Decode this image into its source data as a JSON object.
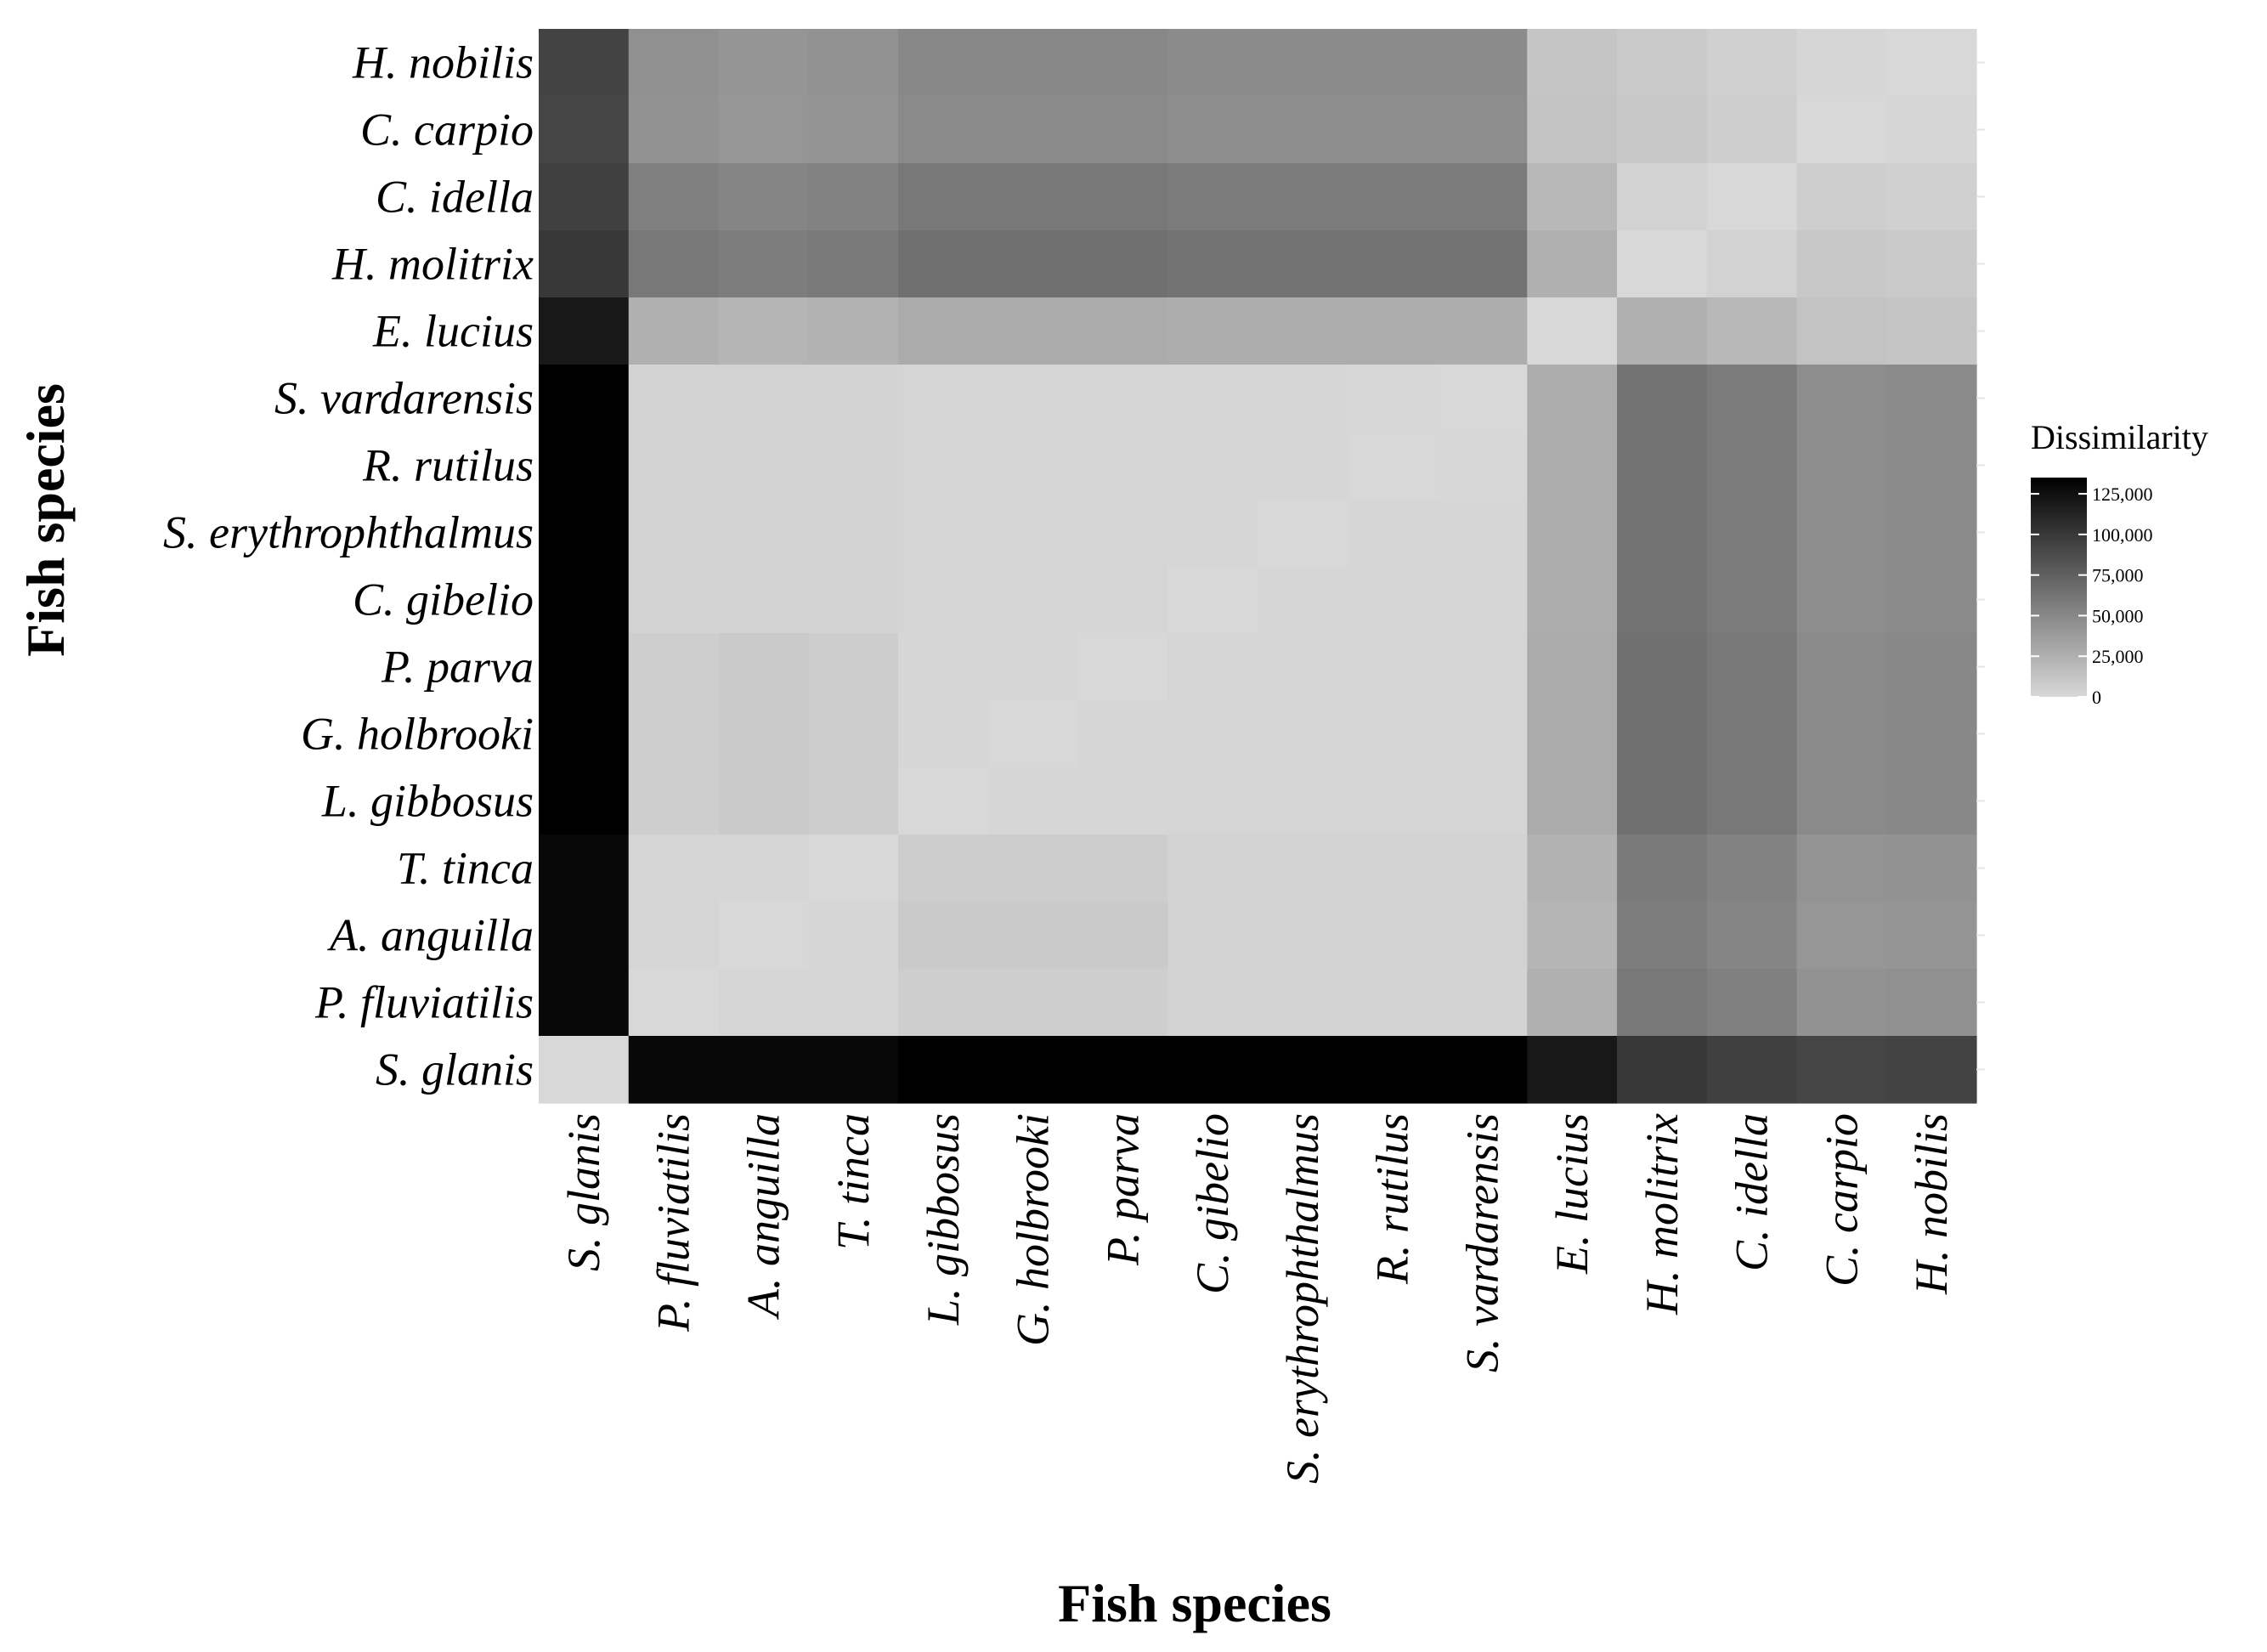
{
  "chart_data": {
    "type": "heatmap",
    "xlabel": "Fish species",
    "ylabel": "Fish species",
    "x_categories": [
      "S. glanis",
      "P. fluviatilis",
      "A. anguilla",
      "T. tinca",
      "L. gibbosus",
      "G. holbrooki",
      "P. parva",
      "C. gibelio",
      "S. erythrophthalmus",
      "R. rutilus",
      "S. vardarensis",
      "E. lucius",
      "H. molitrix",
      "C. idella",
      "C. carpio",
      "H. nobilis"
    ],
    "y_categories_top_to_bottom": [
      "H. nobilis",
      "C. carpio",
      "C. idella",
      "H. molitrix",
      "E. lucius",
      "S. vardarensis",
      "R. rutilus",
      "S. erythrophthalmus",
      "C. gibelio",
      "P. parva",
      "G. holbrooki",
      "L. gibbosus",
      "T. tinca",
      "A. anguilla",
      "P. fluviatilis",
      "S. glanis"
    ],
    "values": [
      [
        93000,
        45000,
        42000,
        44000,
        50000,
        50000,
        50000,
        48000,
        48000,
        48000,
        48000,
        12000,
        9000,
        5000,
        1000,
        0
      ],
      [
        92000,
        44000,
        41000,
        43000,
        49000,
        49000,
        49000,
        47000,
        47000,
        47000,
        47000,
        13000,
        10000,
        6000,
        0,
        1000
      ],
      [
        95000,
        55000,
        52000,
        54000,
        60000,
        60000,
        60000,
        58000,
        58000,
        58000,
        58000,
        20000,
        4000,
        0,
        6000,
        5000
      ],
      [
        100000,
        60000,
        57000,
        59000,
        65000,
        65000,
        65000,
        63000,
        63000,
        63000,
        63000,
        25000,
        0,
        4000,
        10000,
        9000
      ],
      [
        120000,
        25000,
        22000,
        24000,
        28000,
        28000,
        28000,
        27000,
        27000,
        27000,
        27000,
        0,
        25000,
        20000,
        13000,
        12000
      ],
      [
        135000,
        3000,
        4000,
        3000,
        2000,
        2000,
        2000,
        1000,
        1000,
        500,
        0,
        27000,
        63000,
        58000,
        47000,
        48000
      ],
      [
        135000,
        3000,
        4000,
        3000,
        2000,
        2000,
        2000,
        1000,
        1000,
        0,
        500,
        27000,
        63000,
        58000,
        47000,
        48000
      ],
      [
        135000,
        3000,
        4000,
        3000,
        2000,
        2000,
        2000,
        1000,
        0,
        1000,
        1000,
        27000,
        63000,
        58000,
        47000,
        48000
      ],
      [
        135000,
        3000,
        4000,
        3000,
        2000,
        2000,
        2000,
        0,
        1000,
        1000,
        1000,
        27000,
        63000,
        58000,
        47000,
        48000
      ],
      [
        135000,
        6000,
        9000,
        7000,
        1000,
        1000,
        0,
        2000,
        2000,
        2000,
        2000,
        28000,
        65000,
        60000,
        49000,
        50000
      ],
      [
        135000,
        6000,
        9000,
        7000,
        1000,
        0,
        1000,
        2000,
        2000,
        2000,
        2000,
        28000,
        65000,
        60000,
        49000,
        50000
      ],
      [
        135000,
        6000,
        9000,
        7000,
        0,
        1000,
        1000,
        2000,
        2000,
        2000,
        2000,
        28000,
        65000,
        60000,
        49000,
        50000
      ],
      [
        130000,
        2000,
        1000,
        0,
        7000,
        7000,
        7000,
        3000,
        3000,
        3000,
        3000,
        24000,
        59000,
        54000,
        43000,
        44000
      ],
      [
        130000,
        2000,
        0,
        1000,
        9000,
        9000,
        9000,
        4000,
        4000,
        4000,
        4000,
        22000,
        57000,
        52000,
        41000,
        42000
      ],
      [
        130000,
        0,
        2000,
        2000,
        6000,
        6000,
        6000,
        3000,
        3000,
        3000,
        3000,
        25000,
        60000,
        55000,
        44000,
        45000
      ],
      [
        0,
        130000,
        130000,
        130000,
        135000,
        135000,
        135000,
        135000,
        135000,
        135000,
        135000,
        120000,
        100000,
        95000,
        92000,
        93000
      ]
    ],
    "legend": {
      "title": "Dissimilarity",
      "ticks": [
        125000,
        100000,
        75000,
        50000,
        25000,
        0
      ],
      "tick_labels": [
        "125,000",
        "100,000",
        "75,000",
        "50,000",
        "25,000",
        "0"
      ],
      "range": [
        0,
        135000
      ],
      "low_color": "#d8d8d8",
      "high_color": "#000000",
      "position": "right"
    },
    "grid": false
  }
}
